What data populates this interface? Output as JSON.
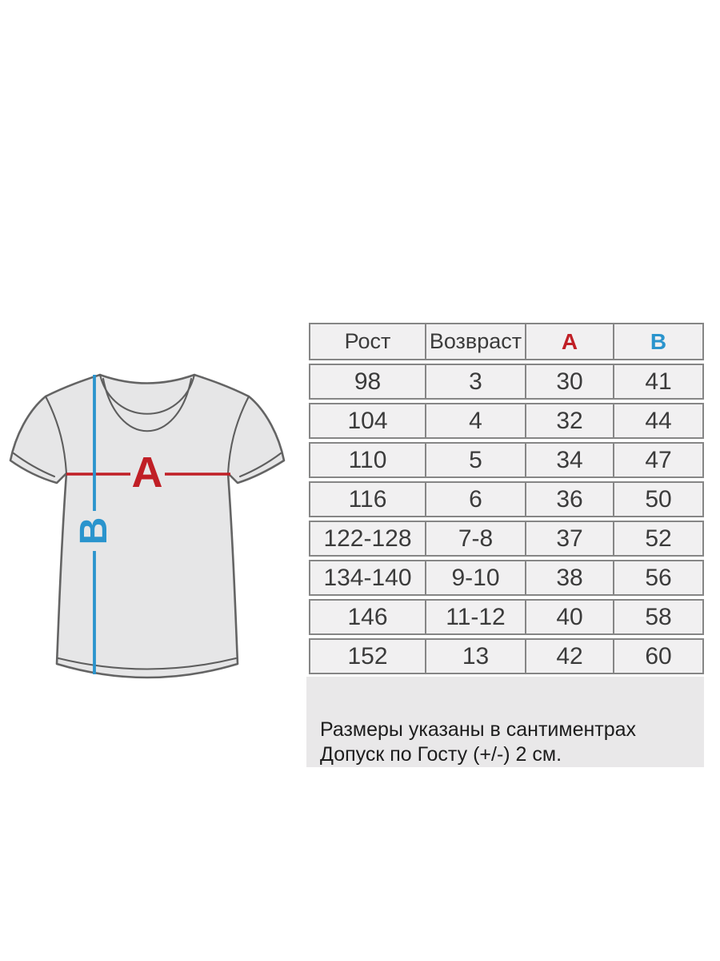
{
  "diagram": {
    "width_label": "A",
    "length_label": "B",
    "width_color": "#c01f26",
    "length_color": "#2a94cd",
    "shirt_fill": "#e6e6e7",
    "shirt_outline": "#646464"
  },
  "table": {
    "headers": [
      {
        "label": "Рост",
        "color": "#3b3b3b"
      },
      {
        "label": "Возвраст",
        "color": "#3b3b3b"
      },
      {
        "label": "A",
        "color": "#c01f26"
      },
      {
        "label": "B",
        "color": "#2a94cd"
      }
    ],
    "rows": [
      [
        "98",
        "3",
        "30",
        "41"
      ],
      [
        "104",
        "4",
        "32",
        "44"
      ],
      [
        "110",
        "5",
        "34",
        "47"
      ],
      [
        "116",
        "6",
        "36",
        "50"
      ],
      [
        "122-128",
        "7-8",
        "37",
        "52"
      ],
      [
        "134-140",
        "9-10",
        "38",
        "56"
      ],
      [
        "146",
        "11-12",
        "40",
        "58"
      ],
      [
        "152",
        "13",
        "42",
        "60"
      ]
    ]
  },
  "footer": {
    "line1": "Размеры указаны в сантиментрах",
    "line2": "Допуск по Госту (+/-) 2 см."
  },
  "chart_data": {
    "type": "table",
    "title": "Детская футболка — таблица размеров",
    "columns": [
      "Рост",
      "Возвраст",
      "A",
      "B"
    ],
    "rows": [
      [
        "98",
        "3",
        "30",
        "41"
      ],
      [
        "104",
        "4",
        "32",
        "44"
      ],
      [
        "110",
        "5",
        "34",
        "47"
      ],
      [
        "116",
        "6",
        "36",
        "50"
      ],
      [
        "122-128",
        "7-8",
        "37",
        "52"
      ],
      [
        "134-140",
        "9-10",
        "38",
        "56"
      ],
      [
        "146",
        "11-12",
        "40",
        "58"
      ],
      [
        "152",
        "13",
        "42",
        "60"
      ]
    ],
    "notes": [
      "Размеры указаны в сантиментрах",
      "Допуск по Госту (+/-) 2 см."
    ]
  }
}
